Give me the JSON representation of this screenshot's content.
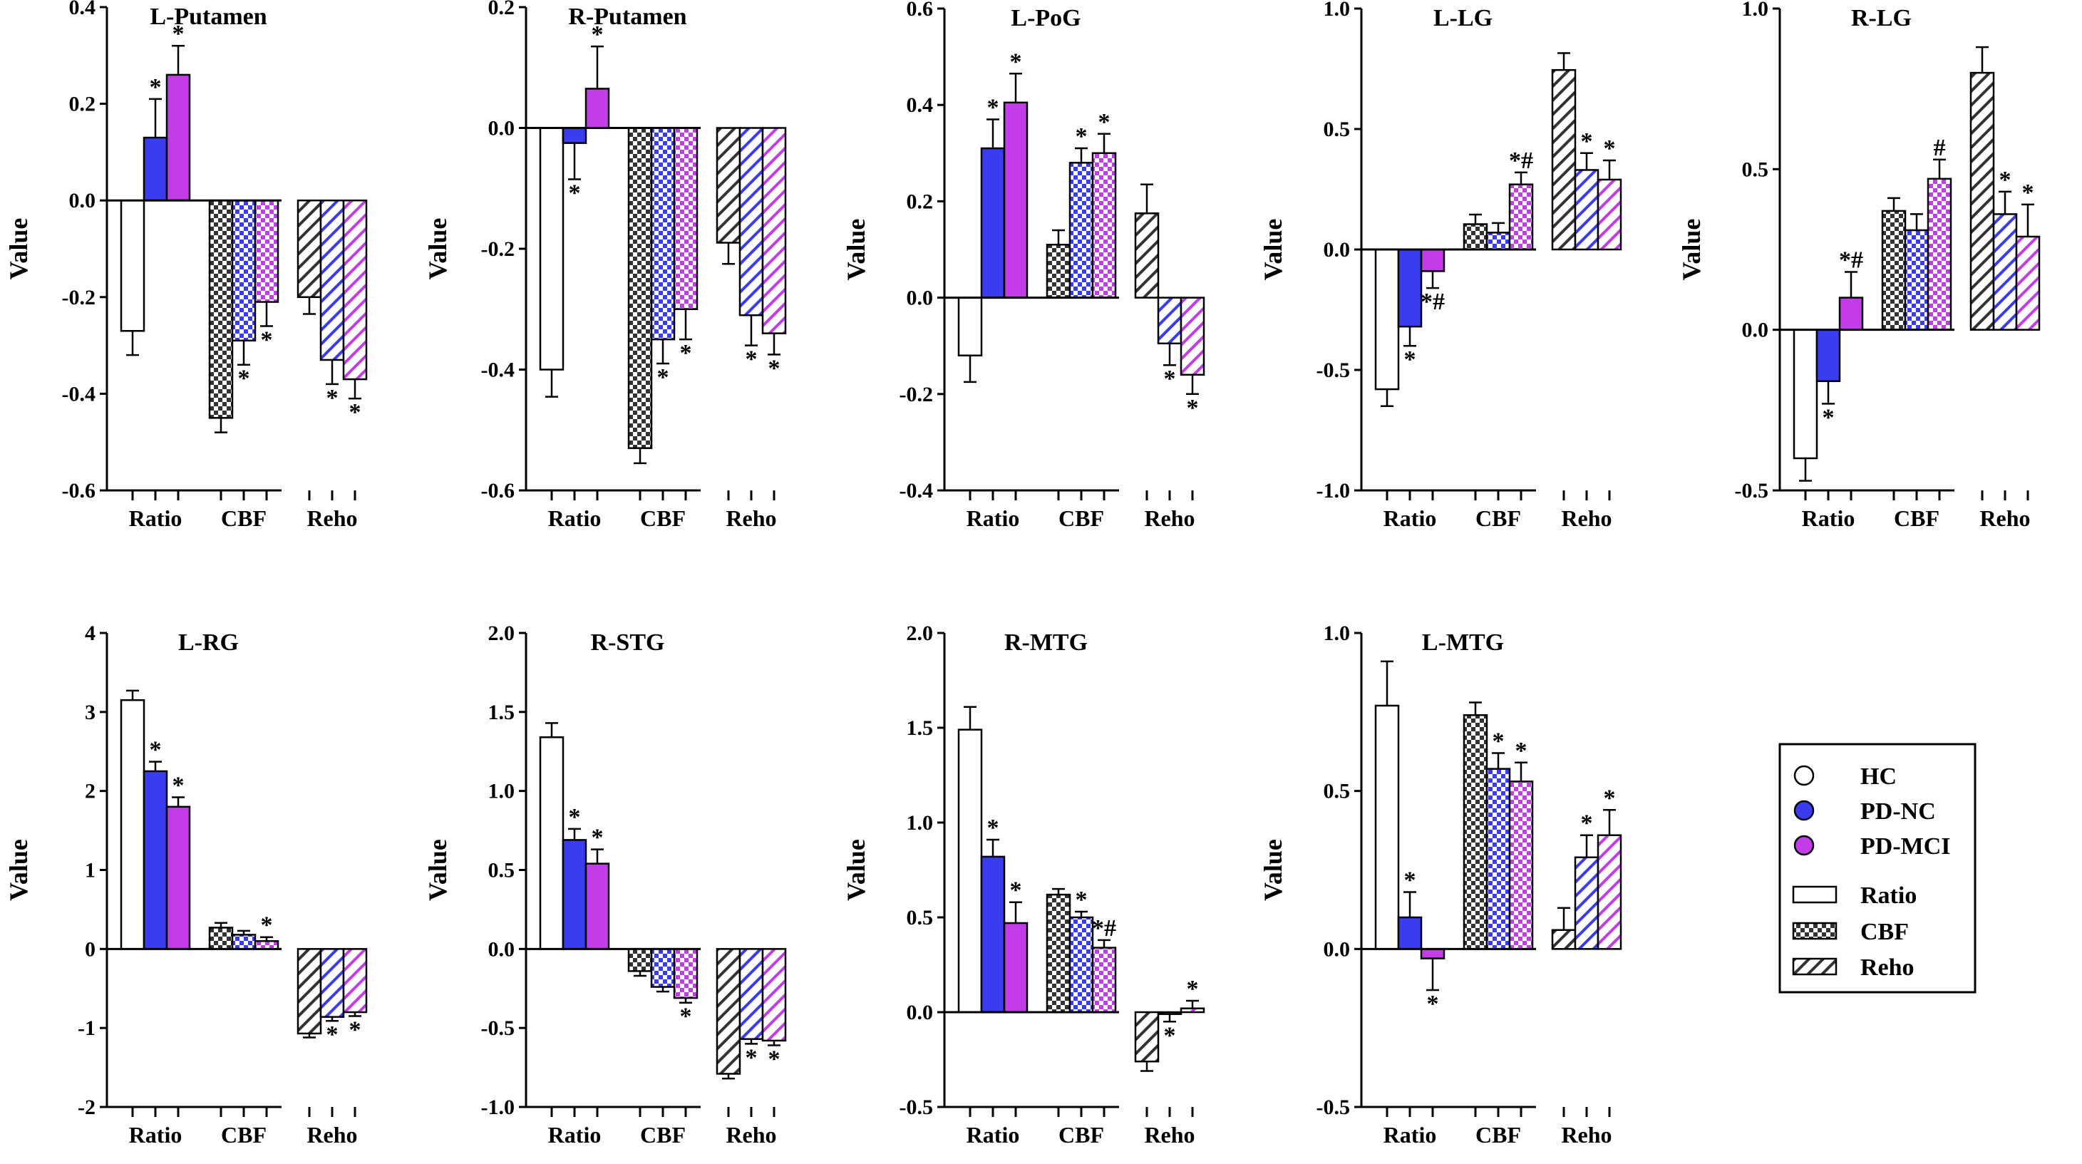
{
  "figure": {
    "ylabel": "Value"
  },
  "colors": {
    "HC": "#ffffff",
    "PD-NC": "#3a3cf0",
    "PD-MCI": "#c23de8",
    "outline": "#000000"
  },
  "legend": {
    "groups": [
      "HC",
      "PD-NC",
      "PD-MCI"
    ],
    "patterns": [
      {
        "key": "solid",
        "label": "Ratio"
      },
      {
        "key": "check",
        "label": "CBF"
      },
      {
        "key": "hatch",
        "label": "Reho"
      }
    ]
  },
  "chart_data": [
    {
      "type": "bar",
      "title": "L-Putamen",
      "ylabel": "Value",
      "ylim": [
        -0.6,
        0.4
      ],
      "yticks": [
        "-0.6",
        "-0.4",
        "-0.2",
        "0.0",
        "0.2",
        "0.4"
      ],
      "categories": [
        "Ratio",
        "CBF",
        "Reho"
      ],
      "series": [
        {
          "name": "HC",
          "values": [
            -0.27,
            -0.45,
            -0.2
          ],
          "errors": [
            0.05,
            0.03,
            0.035
          ],
          "annotations": [
            "",
            "",
            ""
          ]
        },
        {
          "name": "PD-NC",
          "values": [
            0.13,
            -0.29,
            -0.33
          ],
          "errors": [
            0.08,
            0.05,
            0.05
          ],
          "annotations": [
            "*",
            "*",
            "*"
          ]
        },
        {
          "name": "PD-MCI",
          "values": [
            0.26,
            -0.21,
            -0.37
          ],
          "errors": [
            0.06,
            0.05,
            0.04
          ],
          "annotations": [
            "*",
            "*",
            "*"
          ]
        }
      ]
    },
    {
      "type": "bar",
      "title": "R-Putamen",
      "ylabel": "Value",
      "ylim": [
        -0.6,
        0.2
      ],
      "yticks": [
        "-0.6",
        "-0.4",
        "-0.2",
        "0.0",
        "0.2"
      ],
      "categories": [
        "Ratio",
        "CBF",
        "Reho"
      ],
      "series": [
        {
          "name": "HC",
          "values": [
            -0.4,
            -0.53,
            -0.19
          ],
          "errors": [
            0.045,
            0.025,
            0.035
          ],
          "annotations": [
            "",
            "",
            ""
          ]
        },
        {
          "name": "PD-NC",
          "values": [
            -0.025,
            -0.35,
            -0.31
          ],
          "errors": [
            0.06,
            0.04,
            0.05
          ],
          "annotations": [
            "*",
            "*",
            "*"
          ]
        },
        {
          "name": "PD-MCI",
          "values": [
            0.065,
            -0.3,
            -0.34
          ],
          "errors": [
            0.07,
            0.05,
            0.035
          ],
          "annotations": [
            "*",
            "*",
            "*"
          ]
        }
      ]
    },
    {
      "type": "bar",
      "title": "L-PoG",
      "ylabel": "Value",
      "ylim": [
        -0.4,
        0.6
      ],
      "yticks": [
        "-0.4",
        "-0.2",
        "0.0",
        "0.2",
        "0.4",
        "0.6"
      ],
      "categories": [
        "Ratio",
        "CBF",
        "Reho"
      ],
      "series": [
        {
          "name": "HC",
          "values": [
            -0.12,
            0.11,
            0.175
          ],
          "errors": [
            0.055,
            0.03,
            0.06
          ],
          "annotations": [
            "",
            "",
            ""
          ]
        },
        {
          "name": "PD-NC",
          "values": [
            0.31,
            0.28,
            -0.095
          ],
          "errors": [
            0.06,
            0.03,
            0.045
          ],
          "annotations": [
            "*",
            "*",
            "*"
          ]
        },
        {
          "name": "PD-MCI",
          "values": [
            0.405,
            0.3,
            -0.16
          ],
          "errors": [
            0.06,
            0.04,
            0.04
          ],
          "annotations": [
            "*",
            "*",
            "*"
          ]
        }
      ]
    },
    {
      "type": "bar",
      "title": "L-LG",
      "ylabel": "Value",
      "ylim": [
        -1.0,
        1.0
      ],
      "yticks": [
        "-1.0",
        "-0.5",
        "0.0",
        "0.5",
        "1.0"
      ],
      "categories": [
        "Ratio",
        "CBF",
        "Reho"
      ],
      "series": [
        {
          "name": "HC",
          "values": [
            -0.58,
            0.105,
            0.745
          ],
          "errors": [
            0.07,
            0.04,
            0.07
          ],
          "annotations": [
            "",
            "",
            ""
          ]
        },
        {
          "name": "PD-NC",
          "values": [
            -0.32,
            0.07,
            0.33
          ],
          "errors": [
            0.08,
            0.04,
            0.07
          ],
          "annotations": [
            "*",
            "",
            "*"
          ]
        },
        {
          "name": "PD-MCI",
          "values": [
            -0.09,
            0.27,
            0.29
          ],
          "errors": [
            0.07,
            0.05,
            0.08
          ],
          "annotations": [
            "*#",
            "*#",
            "*"
          ]
        }
      ]
    },
    {
      "type": "bar",
      "title": "R-LG",
      "ylabel": "Value",
      "ylim": [
        -0.5,
        1.0
      ],
      "yticks": [
        "-0.5",
        "0.0",
        "0.5",
        "1.0"
      ],
      "categories": [
        "Ratio",
        "CBF",
        "Reho"
      ],
      "series": [
        {
          "name": "HC",
          "values": [
            -0.4,
            0.37,
            0.8
          ],
          "errors": [
            0.07,
            0.04,
            0.08
          ],
          "annotations": [
            "",
            "",
            ""
          ]
        },
        {
          "name": "PD-NC",
          "values": [
            -0.16,
            0.31,
            0.36
          ],
          "errors": [
            0.07,
            0.05,
            0.07
          ],
          "annotations": [
            "*",
            "",
            "*"
          ]
        },
        {
          "name": "PD-MCI",
          "values": [
            0.1,
            0.47,
            0.29
          ],
          "errors": [
            0.08,
            0.06,
            0.1
          ],
          "annotations": [
            "*#",
            "#",
            "*"
          ]
        }
      ]
    },
    {
      "type": "bar",
      "title": "L-RG",
      "ylabel": "Value",
      "ylim": [
        -2,
        4
      ],
      "yticks": [
        "-2",
        "-1",
        "0",
        "1",
        "2",
        "3",
        "4"
      ],
      "categories": [
        "Ratio",
        "CBF",
        "Reho"
      ],
      "series": [
        {
          "name": "HC",
          "values": [
            3.15,
            0.27,
            -1.07
          ],
          "errors": [
            0.12,
            0.06,
            0.05
          ],
          "annotations": [
            "",
            "",
            ""
          ]
        },
        {
          "name": "PD-NC",
          "values": [
            2.25,
            0.18,
            -0.86
          ],
          "errors": [
            0.12,
            0.05,
            0.05
          ],
          "annotations": [
            "*",
            "",
            "*"
          ]
        },
        {
          "name": "PD-MCI",
          "values": [
            1.8,
            0.1,
            -0.8
          ],
          "errors": [
            0.12,
            0.05,
            0.05
          ],
          "annotations": [
            "*",
            "*",
            "*"
          ]
        }
      ]
    },
    {
      "type": "bar",
      "title": "R-STG",
      "ylabel": "Value",
      "ylim": [
        -1.0,
        2.0
      ],
      "yticks": [
        "-1.0",
        "-0.5",
        "0.0",
        "0.5",
        "1.0",
        "1.5",
        "2.0"
      ],
      "categories": [
        "Ratio",
        "CBF",
        "Reho"
      ],
      "series": [
        {
          "name": "HC",
          "values": [
            1.34,
            -0.14,
            -0.79
          ],
          "errors": [
            0.09,
            0.03,
            0.03
          ],
          "annotations": [
            "",
            "",
            ""
          ]
        },
        {
          "name": "PD-NC",
          "values": [
            0.69,
            -0.24,
            -0.57
          ],
          "errors": [
            0.07,
            0.03,
            0.03
          ],
          "annotations": [
            "*",
            "",
            "*"
          ]
        },
        {
          "name": "PD-MCI",
          "values": [
            0.54,
            -0.31,
            -0.58
          ],
          "errors": [
            0.09,
            0.03,
            0.03
          ],
          "annotations": [
            "*",
            "*",
            "*"
          ]
        }
      ]
    },
    {
      "type": "bar",
      "title": "R-MTG",
      "ylabel": "Value",
      "ylim": [
        -0.5,
        2.0
      ],
      "yticks": [
        "-0.5",
        "0.0",
        "0.5",
        "1.0",
        "1.5",
        "2.0"
      ],
      "categories": [
        "Ratio",
        "CBF",
        "Reho"
      ],
      "series": [
        {
          "name": "HC",
          "values": [
            1.49,
            0.62,
            -0.26
          ],
          "errors": [
            0.12,
            0.03,
            0.05
          ],
          "annotations": [
            "",
            "",
            ""
          ]
        },
        {
          "name": "PD-NC",
          "values": [
            0.82,
            0.5,
            -0.01
          ],
          "errors": [
            0.09,
            0.03,
            0.04
          ],
          "annotations": [
            "*",
            "*",
            "*"
          ]
        },
        {
          "name": "PD-MCI",
          "values": [
            0.47,
            0.34,
            0.02
          ],
          "errors": [
            0.11,
            0.04,
            0.04
          ],
          "annotations": [
            "*",
            "*#",
            "*"
          ]
        }
      ]
    },
    {
      "type": "bar",
      "title": "L-MTG",
      "ylabel": "Value",
      "ylim": [
        -0.5,
        1.0
      ],
      "yticks": [
        "-0.5",
        "0.0",
        "0.5",
        "1.0"
      ],
      "categories": [
        "Ratio",
        "CBF",
        "Reho"
      ],
      "series": [
        {
          "name": "HC",
          "values": [
            0.77,
            0.74,
            0.06
          ],
          "errors": [
            0.14,
            0.04,
            0.07
          ],
          "annotations": [
            "",
            "",
            ""
          ]
        },
        {
          "name": "PD-NC",
          "values": [
            0.1,
            0.57,
            0.29
          ],
          "errors": [
            0.08,
            0.05,
            0.07
          ],
          "annotations": [
            "*",
            "*",
            "*"
          ]
        },
        {
          "name": "PD-MCI",
          "values": [
            -0.03,
            0.53,
            0.36
          ],
          "errors": [
            0.1,
            0.06,
            0.08
          ],
          "annotations": [
            "*",
            "*",
            "*"
          ]
        }
      ]
    }
  ]
}
